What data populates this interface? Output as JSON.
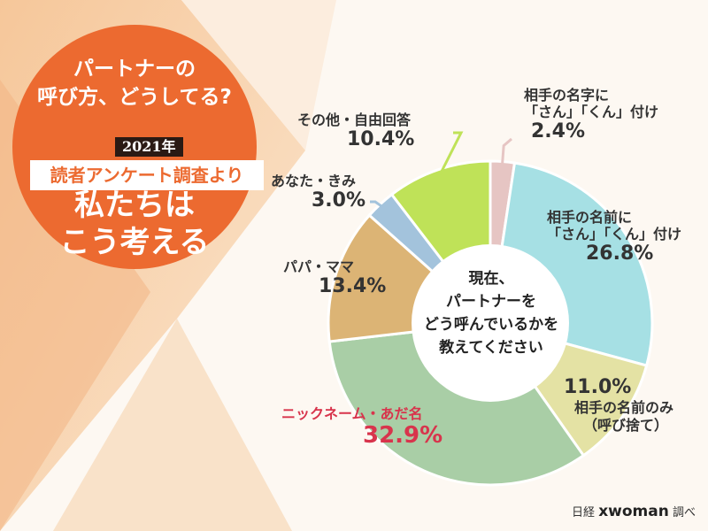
{
  "badge": {
    "title_line1": "パートナーの",
    "title_line2": "呼び方、どうしてる?",
    "year": "2021年",
    "survey": "読者アンケート調査より",
    "sub_line1": "私たちは",
    "sub_line2": "こう考える"
  },
  "center_text": [
    "現在、",
    "パートナーを",
    "どう呼んでいるかを",
    "教えてください"
  ],
  "source": {
    "pre": "日経",
    "brand": "xwoman",
    "post": "調べ"
  },
  "chart_data": {
    "type": "pie",
    "donut": true,
    "title": "",
    "categories": [
      "相手の名字に「さん」「くん」付け",
      "相手の名前に「さん」「くん」付け",
      "相手の名前のみ（呼び捨て）",
      "ニックネーム・あだ名",
      "パパ・ママ",
      "あなた・きみ",
      "その他・自由回答"
    ],
    "values": [
      2.4,
      26.8,
      11.0,
      32.9,
      13.4,
      3.0,
      10.4
    ],
    "value_labels": [
      "2.4%",
      "26.8%",
      "11.0%",
      "32.9%",
      "13.4%",
      "3.0%",
      "10.4%"
    ],
    "colors": [
      "#e6c5c3",
      "#a6e0e4",
      "#e4e2a4",
      "#a9cea6",
      "#dcb475",
      "#a3c3dc",
      "#bfe258"
    ],
    "label_lines": [
      [
        "相手の名字に",
        "「さん」「くん」付け"
      ],
      [
        "相手の名前に",
        "「さん」「くん」付け"
      ],
      [
        "相手の名前のみ",
        "（呼び捨て）"
      ],
      [
        "ニックネーム・あだ名"
      ],
      [
        "パパ・ママ"
      ],
      [
        "あなた・きみ"
      ],
      [
        "その他・自由回答"
      ]
    ],
    "highlight_color": "#d8344c"
  }
}
